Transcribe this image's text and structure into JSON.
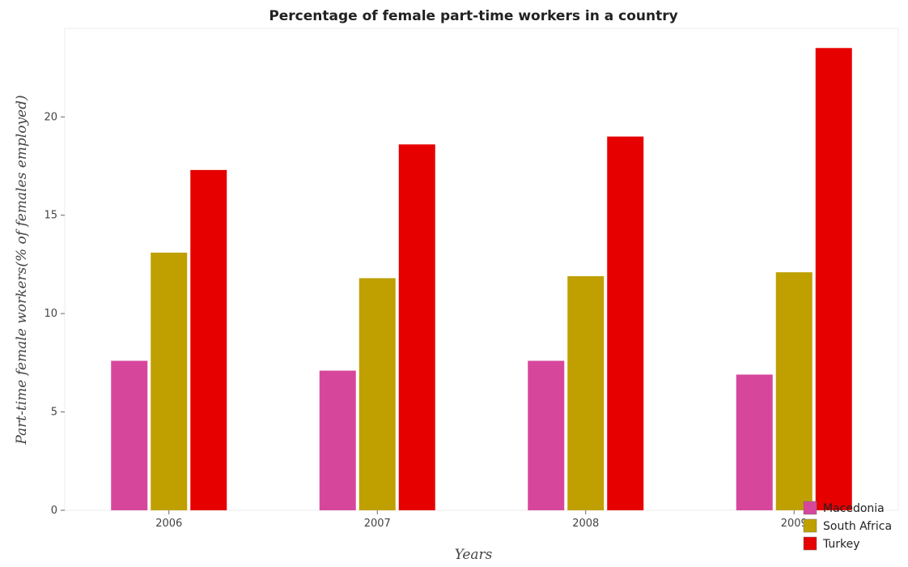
{
  "chart_data": {
    "type": "bar",
    "title": "Percentage of female part-time workers in a country",
    "xlabel": "Years",
    "ylabel": "Part-time female workers(% of females employed)",
    "categories": [
      "2006",
      "2007",
      "2008",
      "2009"
    ],
    "series": [
      {
        "name": "Macedonia",
        "color": "#d6479b",
        "values": [
          7.6,
          7.1,
          7.6,
          6.9
        ]
      },
      {
        "name": "South Africa",
        "color": "#bfa000",
        "values": [
          13.1,
          11.8,
          11.9,
          12.1
        ]
      },
      {
        "name": "Turkey",
        "color": "#e60000",
        "values": [
          17.3,
          18.6,
          19.0,
          23.5
        ]
      }
    ],
    "yticks": [
      0,
      5,
      10,
      15,
      20
    ],
    "ylim": [
      0,
      24.5
    ],
    "grid": false,
    "legend_position": "bottom-right"
  }
}
